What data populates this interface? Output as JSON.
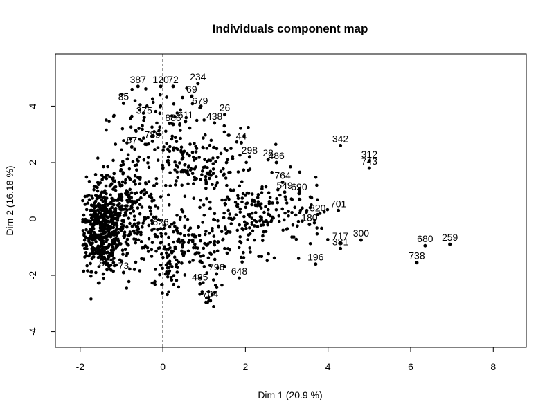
{
  "chart_data": {
    "type": "scatter",
    "title": "Individuals component map",
    "xlabel": "Dim 1 (20.9 %)",
    "ylabel": "Dim 2 (16.18 %)",
    "xlim": [
      -2.6,
      8.8
    ],
    "ylim": [
      -4.55,
      5.85
    ],
    "xticks": [
      -2,
      0,
      2,
      4,
      6,
      8
    ],
    "yticks": [
      -4,
      -2,
      0,
      2,
      4
    ],
    "reference_lines": {
      "x": 0,
      "y": 0,
      "style": "dashed"
    },
    "grid": false,
    "legend": "none",
    "point_color": "#000000",
    "labeled_points": [
      {
        "label": "387",
        "x": -0.6,
        "y": 4.7
      },
      {
        "label": "120",
        "x": -0.05,
        "y": 4.7
      },
      {
        "label": "72",
        "x": 0.25,
        "y": 4.7
      },
      {
        "label": "234",
        "x": 0.85,
        "y": 4.8
      },
      {
        "label": "69",
        "x": 0.7,
        "y": 4.35
      },
      {
        "label": "85",
        "x": -0.95,
        "y": 4.1
      },
      {
        "label": "679",
        "x": 0.9,
        "y": 3.95
      },
      {
        "label": "26",
        "x": 1.5,
        "y": 3.7
      },
      {
        "label": "375",
        "x": -0.45,
        "y": 3.6
      },
      {
        "label": "611",
        "x": 0.55,
        "y": 3.45
      },
      {
        "label": "438",
        "x": 1.25,
        "y": 3.4
      },
      {
        "label": "886",
        "x": 0.25,
        "y": 3.35
      },
      {
        "label": "789",
        "x": -0.25,
        "y": 2.75
      },
      {
        "label": "87",
        "x": -0.75,
        "y": 2.55
      },
      {
        "label": "44",
        "x": 1.9,
        "y": 2.7
      },
      {
        "label": "298",
        "x": 2.1,
        "y": 2.2
      },
      {
        "label": "486",
        "x": 2.75,
        "y": 2.0
      },
      {
        "label": "28",
        "x": 2.55,
        "y": 2.1
      },
      {
        "label": "342",
        "x": 4.3,
        "y": 2.6
      },
      {
        "label": "312",
        "x": 5.0,
        "y": 2.05
      },
      {
        "label": "743",
        "x": 5.0,
        "y": 1.8
      },
      {
        "label": "764",
        "x": 2.9,
        "y": 1.3
      },
      {
        "label": "549",
        "x": 2.95,
        "y": 0.95
      },
      {
        "label": "690",
        "x": 3.3,
        "y": 0.9
      },
      {
        "label": "701",
        "x": 4.25,
        "y": 0.3
      },
      {
        "label": "320",
        "x": 3.75,
        "y": 0.15
      },
      {
        "label": "180",
        "x": 3.55,
        "y": -0.2
      },
      {
        "label": "300",
        "x": 4.8,
        "y": -0.75
      },
      {
        "label": "717",
        "x": 4.3,
        "y": -0.85
      },
      {
        "label": "381",
        "x": 4.3,
        "y": -1.05
      },
      {
        "label": "680",
        "x": 6.35,
        "y": -0.95
      },
      {
        "label": "259",
        "x": 6.95,
        "y": -0.9
      },
      {
        "label": "738",
        "x": 6.15,
        "y": -1.55
      },
      {
        "label": "196",
        "x": 3.7,
        "y": -1.6
      },
      {
        "label": "648",
        "x": 1.85,
        "y": -2.1
      },
      {
        "label": "796",
        "x": 1.3,
        "y": -1.95
      },
      {
        "label": "485",
        "x": 0.9,
        "y": -2.3
      },
      {
        "label": "704",
        "x": 1.15,
        "y": -2.9
      },
      {
        "label": "853",
        "x": -1.35,
        "y": -1.8
      },
      {
        "label": "73",
        "x": -0.95,
        "y": -1.9
      },
      {
        "label": "626",
        "x": -0.05,
        "y": -0.35
      }
    ]
  }
}
